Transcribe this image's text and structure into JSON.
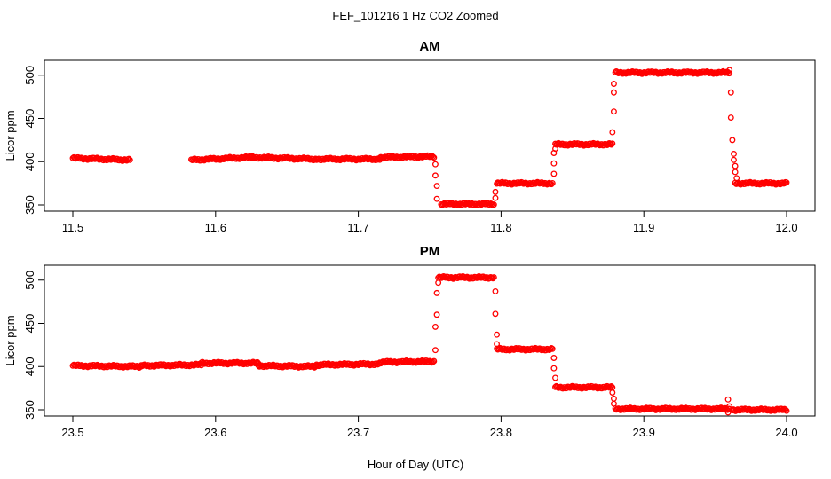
{
  "figure": {
    "title": "FEF_101216  1 Hz CO2 Zoomed",
    "xlabel": "Hour of Day (UTC)"
  },
  "colors": {
    "points": "#ff0000",
    "axes": "#000000",
    "background": "#ffffff"
  },
  "chart_data": [
    {
      "type": "scatter",
      "title": "AM",
      "xlabel": "",
      "ylabel": "Licor ppm",
      "xlim": [
        11.5,
        12.0
      ],
      "ylim": [
        350,
        510
      ],
      "xticks": [
        "11.5",
        "11.6",
        "11.7",
        "11.8",
        "11.9",
        "12.0"
      ],
      "yticks": [
        "350",
        "400",
        "450",
        "500"
      ],
      "grid": false,
      "marker": "open-circle",
      "segments": [
        {
          "x": [
            11.5,
            11.54
          ],
          "y": [
            404,
            402
          ]
        },
        {
          "x": [
            11.583,
            11.625
          ],
          "y": [
            402,
            405
          ]
        },
        {
          "x": [
            11.625,
            11.67
          ],
          "y": [
            405,
            403
          ]
        },
        {
          "x": [
            11.67,
            11.715
          ],
          "y": [
            403,
            403
          ]
        },
        {
          "x": [
            11.715,
            11.753
          ],
          "y": [
            405,
            406
          ]
        },
        {
          "x": [
            11.758,
            11.795
          ],
          "y": [
            351,
            351
          ]
        },
        {
          "x": [
            11.797,
            11.836
          ],
          "y": [
            375,
            375
          ]
        },
        {
          "x": [
            11.838,
            11.878
          ],
          "y": [
            420,
            420
          ]
        },
        {
          "x": [
            11.88,
            11.96
          ],
          "y": [
            503,
            503
          ]
        },
        {
          "x": [
            11.964,
            12.0
          ],
          "y": [
            375,
            375
          ]
        }
      ],
      "transition_points": [
        {
          "x": 11.754,
          "y": 397
        },
        {
          "x": 11.754,
          "y": 384
        },
        {
          "x": 11.755,
          "y": 372
        },
        {
          "x": 11.755,
          "y": 357
        },
        {
          "x": 11.796,
          "y": 358
        },
        {
          "x": 11.796,
          "y": 365
        },
        {
          "x": 11.837,
          "y": 386
        },
        {
          "x": 11.837,
          "y": 398
        },
        {
          "x": 11.837,
          "y": 410
        },
        {
          "x": 11.838,
          "y": 415
        },
        {
          "x": 11.878,
          "y": 434
        },
        {
          "x": 11.879,
          "y": 458
        },
        {
          "x": 11.879,
          "y": 480
        },
        {
          "x": 11.879,
          "y": 490
        },
        {
          "x": 11.96,
          "y": 506
        },
        {
          "x": 11.961,
          "y": 480
        },
        {
          "x": 11.961,
          "y": 451
        },
        {
          "x": 11.962,
          "y": 425
        },
        {
          "x": 11.963,
          "y": 409
        },
        {
          "x": 11.963,
          "y": 402
        },
        {
          "x": 11.964,
          "y": 395
        },
        {
          "x": 11.964,
          "y": 388
        },
        {
          "x": 11.965,
          "y": 381
        }
      ]
    },
    {
      "type": "scatter",
      "title": "PM",
      "xlabel": "",
      "ylabel": "Licor ppm",
      "xlim": [
        23.5,
        24.0
      ],
      "ylim": [
        350,
        510
      ],
      "xticks": [
        "23.5",
        "23.6",
        "23.7",
        "23.8",
        "23.9",
        "24.0"
      ],
      "yticks": [
        "350",
        "400",
        "450",
        "500"
      ],
      "grid": false,
      "marker": "open-circle",
      "segments": [
        {
          "x": [
            23.5,
            23.548
          ],
          "y": [
            401,
            400
          ]
        },
        {
          "x": [
            23.548,
            23.59
          ],
          "y": [
            401,
            402
          ]
        },
        {
          "x": [
            23.59,
            23.63
          ],
          "y": [
            404,
            404
          ]
        },
        {
          "x": [
            23.63,
            23.67
          ],
          "y": [
            401,
            400
          ]
        },
        {
          "x": [
            23.67,
            23.715
          ],
          "y": [
            402,
            403
          ]
        },
        {
          "x": [
            23.715,
            23.753
          ],
          "y": [
            405,
            406
          ]
        },
        {
          "x": [
            23.756,
            23.795
          ],
          "y": [
            503,
            503
          ]
        },
        {
          "x": [
            23.797,
            23.836
          ],
          "y": [
            420,
            420
          ]
        },
        {
          "x": [
            23.838,
            23.878
          ],
          "y": [
            376,
            376
          ]
        },
        {
          "x": [
            23.88,
            23.96
          ],
          "y": [
            351,
            351
          ]
        },
        {
          "x": [
            23.962,
            24.0
          ],
          "y": [
            350,
            350
          ]
        }
      ],
      "transition_points": [
        {
          "x": 23.754,
          "y": 419
        },
        {
          "x": 23.754,
          "y": 446
        },
        {
          "x": 23.755,
          "y": 460
        },
        {
          "x": 23.755,
          "y": 485
        },
        {
          "x": 23.756,
          "y": 497
        },
        {
          "x": 23.796,
          "y": 487
        },
        {
          "x": 23.796,
          "y": 461
        },
        {
          "x": 23.797,
          "y": 437
        },
        {
          "x": 23.797,
          "y": 426
        },
        {
          "x": 23.837,
          "y": 410
        },
        {
          "x": 23.837,
          "y": 398
        },
        {
          "x": 23.838,
          "y": 387
        },
        {
          "x": 23.878,
          "y": 370
        },
        {
          "x": 23.879,
          "y": 363
        },
        {
          "x": 23.879,
          "y": 357
        },
        {
          "x": 23.959,
          "y": 362
        },
        {
          "x": 23.959,
          "y": 347
        },
        {
          "x": 23.96,
          "y": 354
        }
      ]
    }
  ]
}
